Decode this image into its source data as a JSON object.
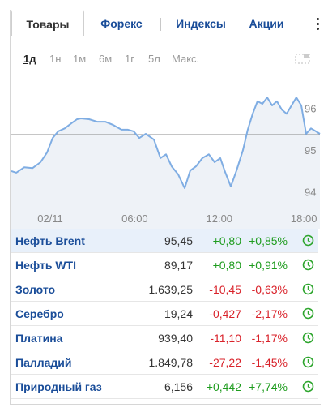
{
  "tabs": [
    "Товары",
    "Форекс",
    "Индексы",
    "Акции"
  ],
  "ranges": [
    "1д",
    "1н",
    "1м",
    "6м",
    "1г",
    "5л",
    "Макс."
  ],
  "chart": {
    "type": "line",
    "color": "#7fade3",
    "x": [
      -2.76,
      -2.41,
      -1.84,
      -1.26,
      -0.69,
      -0.23,
      0.17,
      0.57,
      1.03,
      1.49,
      1.9,
      2.18,
      2.76,
      3.33,
      3.91,
      4.48,
      5.06,
      5.52,
      5.92,
      6.32,
      6.78,
      7.36,
      7.82,
      8.22,
      8.62,
      9.08,
      9.54,
      9.94,
      10.34,
      10.8,
      11.26,
      11.67,
      12.07,
      12.41,
      12.82,
      13.22,
      13.68,
      14.02,
      14.37,
      14.71,
      15.06,
      15.4,
      15.75,
      16.09,
      16.44,
      16.78,
      17.13,
      17.47,
      17.82,
      18.16,
      18.51,
      18.85,
      19.14
    ],
    "values": [
      94.5,
      94.46,
      94.59,
      94.57,
      94.71,
      94.94,
      95.29,
      95.45,
      95.52,
      95.64,
      95.74,
      95.76,
      95.74,
      95.68,
      95.68,
      95.6,
      95.49,
      95.49,
      95.45,
      95.29,
      95.39,
      95.25,
      94.81,
      94.9,
      94.61,
      94.42,
      94.09,
      94.51,
      94.61,
      94.81,
      94.9,
      94.71,
      94.81,
      94.48,
      94.13,
      94.51,
      95,
      95.49,
      95.87,
      96.17,
      96.11,
      96.26,
      96.07,
      96.17,
      95.97,
      95.87,
      96.07,
      96.26,
      96.07,
      95.39,
      95.52,
      95.45,
      95.39
    ],
    "reference": 95.37,
    "xlim": [
      -2.76,
      19.14
    ],
    "ylim": [
      93.74,
      96.75
    ],
    "xticks": [
      {
        "value": 0,
        "label": "02/11"
      },
      {
        "value": 6,
        "label": "06:00"
      },
      {
        "value": 12,
        "label": "12:00"
      },
      {
        "value": 18,
        "label": "18:00"
      }
    ],
    "yticks": [
      94,
      95,
      96
    ]
  },
  "table": {
    "rows": [
      [
        "Нефть Brent",
        "95,45",
        "+0,80",
        "+0,85%"
      ],
      [
        "Нефть WTI",
        "89,17",
        "+0,80",
        "+0,91%"
      ],
      [
        "Золото",
        "1.639,25",
        "-10,45",
        "-0,63%"
      ],
      [
        "Серебро",
        "19,24",
        "-0,427",
        "-2,17%"
      ],
      [
        "Платина",
        "939,40",
        "-11,10",
        "-1,17%"
      ],
      [
        "Палладий",
        "1.849,78",
        "-27,22",
        "-1,45%"
      ],
      [
        "Природный газ",
        "6,156",
        "+0,442",
        "+7,74%"
      ]
    ]
  }
}
